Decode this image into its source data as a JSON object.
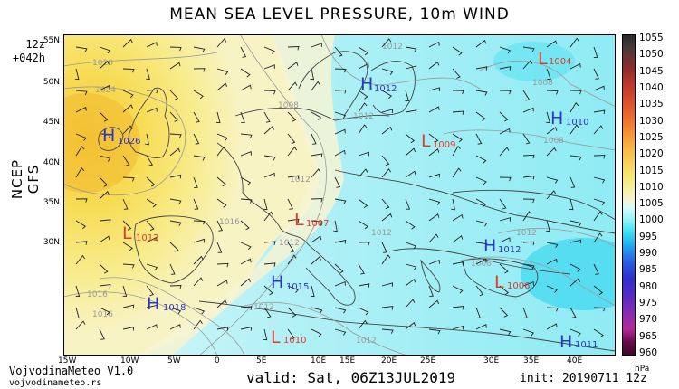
{
  "title": "MEAN SEA LEVEL PRESSURE, 10m WIND",
  "run": {
    "hour": "12z",
    "lead": "+042h"
  },
  "model": "NCEP GFS",
  "valid": "valid: Sat, 06Z13JUL2019",
  "init": "init: 20190711 12z",
  "credit": {
    "name": "VojvodinaMeteo V1.0",
    "site": "vojvodinameteo.rs"
  },
  "colorbar": {
    "unit": "hPa",
    "labels": [
      "1055",
      "1050",
      "1045",
      "1040",
      "1035",
      "1030",
      "1025",
      "1020",
      "1015",
      "1010",
      "1005",
      "1000",
      "995",
      "990",
      "985",
      "980",
      "975",
      "970",
      "965",
      "960"
    ]
  },
  "lat_labels": [
    "55N",
    "50N",
    "45N",
    "40N",
    "35N",
    "30N"
  ],
  "lon_labels": [
    "15W",
    "10W",
    "5W",
    "0",
    "5E",
    "10E",
    "15E",
    "20E",
    "25E",
    "30E",
    "35E",
    "40E"
  ],
  "isobars": [
    "1020",
    "1024",
    "1012",
    "1008",
    "1012",
    "1008",
    "1016",
    "1012",
    "1008",
    "1016",
    "1016",
    "1012",
    "1012",
    "1012",
    "1008",
    "1012",
    "1012"
  ],
  "centers": [
    {
      "type": "H",
      "value": "1026"
    },
    {
      "type": "L",
      "value": "1004"
    },
    {
      "type": "H",
      "value": "1012"
    },
    {
      "type": "H",
      "value": "1010"
    },
    {
      "type": "L",
      "value": "1009"
    },
    {
      "type": "L",
      "value": "1012"
    },
    {
      "type": "L",
      "value": "1007"
    },
    {
      "type": "H",
      "value": "1012"
    },
    {
      "type": "L",
      "value": "1006"
    },
    {
      "type": "H",
      "value": "1018"
    },
    {
      "type": "H",
      "value": "1015"
    },
    {
      "type": "L",
      "value": "1010"
    },
    {
      "type": "H",
      "value": "1011"
    }
  ]
}
